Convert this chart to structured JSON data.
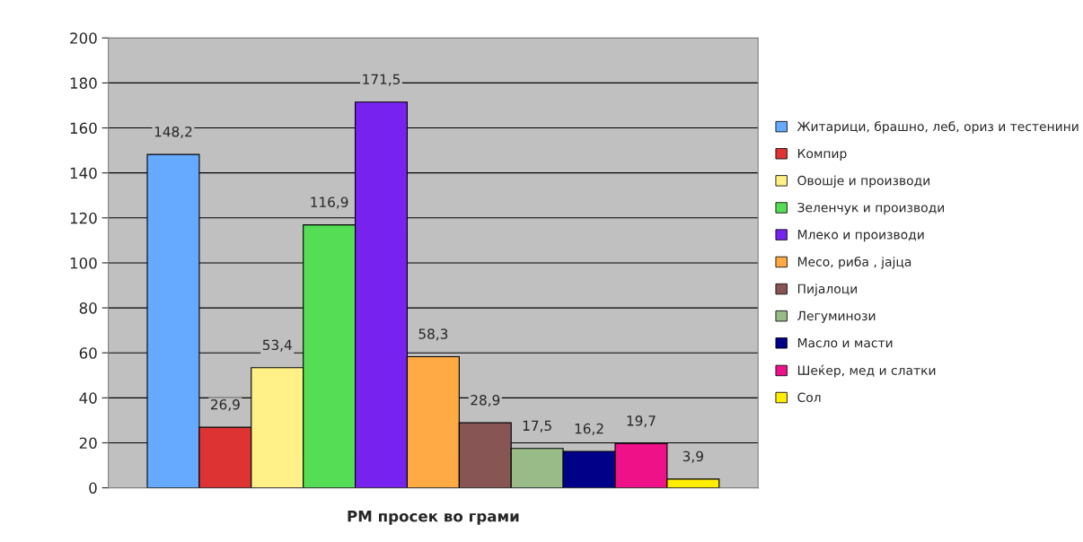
{
  "chart_data": {
    "type": "bar",
    "categories": [
      "РМ просек во грами"
    ],
    "series": [
      {
        "name": "Житарици, брашно, леб, ориз и тестенини",
        "color": "#66aaff",
        "values": [
          148.2
        ],
        "value_labels": [
          "148,2"
        ]
      },
      {
        "name": "Компир",
        "color": "#dd3333",
        "values": [
          26.9
        ],
        "value_labels": [
          "26,9"
        ]
      },
      {
        "name": "Овошје и производи",
        "color": "#fff088",
        "values": [
          53.4
        ],
        "value_labels": [
          "53,4"
        ]
      },
      {
        "name": "Зеленчук и производи",
        "color": "#55dd55",
        "values": [
          116.9
        ],
        "value_labels": [
          "116,9"
        ]
      },
      {
        "name": "Млеко и производи",
        "color": "#7722ee",
        "values": [
          171.5
        ],
        "value_labels": [
          "171,5"
        ]
      },
      {
        "name": "Месо, риба , јајца",
        "color": "#ffaa44",
        "values": [
          58.3
        ],
        "value_labels": [
          "58,3"
        ]
      },
      {
        "name": "Пијалоци",
        "color": "#885555",
        "values": [
          28.9
        ],
        "value_labels": [
          "28,9"
        ]
      },
      {
        "name": "Легуминози",
        "color": "#99bb88",
        "values": [
          17.5
        ],
        "value_labels": [
          "17,5"
        ]
      },
      {
        "name": "Масло и масти",
        "color": "#000088",
        "values": [
          16.2
        ],
        "value_labels": [
          "16,2"
        ]
      },
      {
        "name": "Шеќер, мед и слатки",
        "color": "#ee1188",
        "values": [
          19.7
        ],
        "value_labels": [
          "19,7"
        ]
      },
      {
        "name": "Сол",
        "color": "#ffee00",
        "values": [
          3.9
        ],
        "value_labels": [
          "3,9"
        ]
      }
    ],
    "ylim": [
      0,
      200
    ],
    "yticks": [
      0,
      20,
      40,
      60,
      80,
      100,
      120,
      140,
      160,
      180,
      200
    ],
    "grid": "y",
    "legend": "right"
  }
}
